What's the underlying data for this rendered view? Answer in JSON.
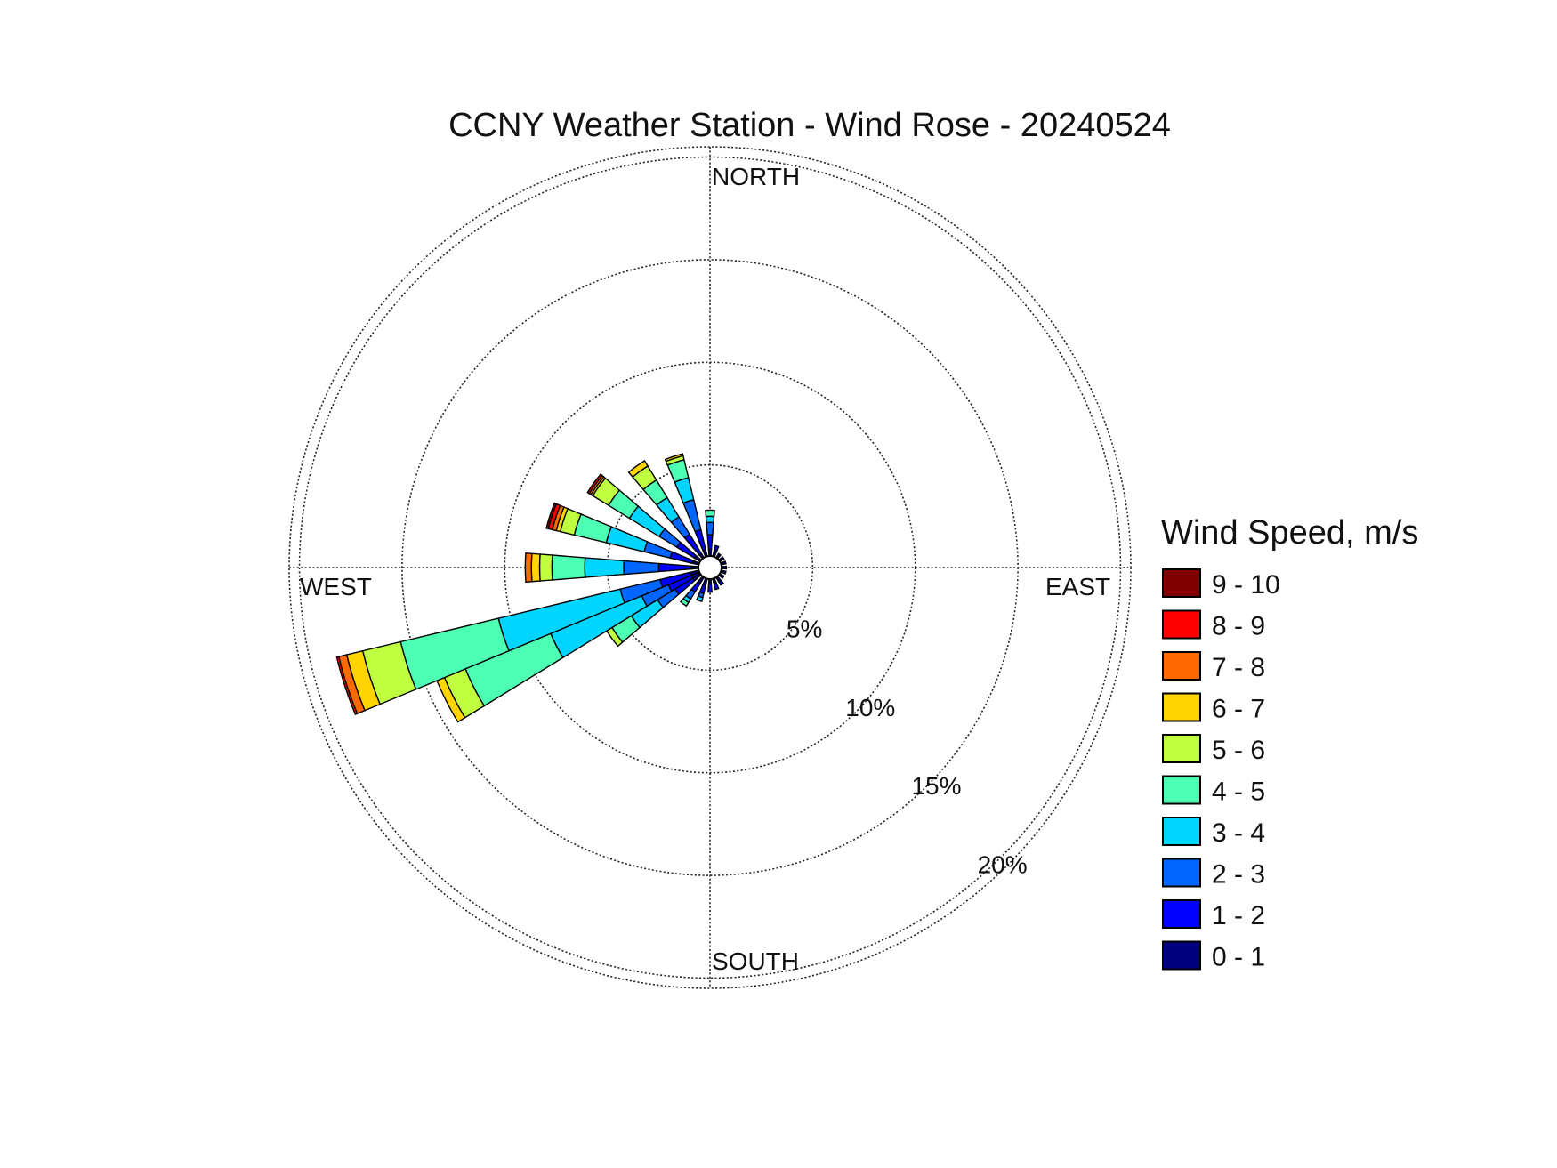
{
  "chart_data": {
    "type": "wind-rose",
    "title": "CCNY Weather Station - Wind Rose - 20240524",
    "direction_labels": {
      "north": "NORTH",
      "south": "SOUTH",
      "east": "EAST",
      "west": "WEST"
    },
    "rings": [
      5,
      10,
      15,
      20
    ],
    "ring_labels": [
      "5%",
      "10%",
      "15%",
      "20%"
    ],
    "rmax": 20.5,
    "calm_radius": 0.6,
    "grid": true,
    "legend": {
      "title": "Wind Speed, m/s",
      "position": "right",
      "bins": [
        {
          "label": "9 - 10",
          "color": "#800000"
        },
        {
          "label": "8 - 9",
          "color": "#ff0000"
        },
        {
          "label": "7 - 8",
          "color": "#ff6a00"
        },
        {
          "label": "6 - 7",
          "color": "#ffd400"
        },
        {
          "label": "5 - 6",
          "color": "#bfff40"
        },
        {
          "label": "4 - 5",
          "color": "#4dffb3"
        },
        {
          "label": "3 - 4",
          "color": "#00d5ff"
        },
        {
          "label": "2 - 3",
          "color": "#0066ff"
        },
        {
          "label": "1 - 2",
          "color": "#0000ff"
        },
        {
          "label": "0 - 1",
          "color": "#00007f"
        }
      ]
    },
    "sector_width_deg": 9,
    "bin_order": [
      "0 - 1",
      "1 - 2",
      "2 - 3",
      "3 - 4",
      "4 - 5",
      "5 - 6",
      "6 - 7",
      "7 - 8",
      "8 - 9",
      "9 - 10"
    ],
    "sectors": [
      {
        "direction_deg": 0,
        "cumulative": [
          0.9,
          1.6,
          2.2,
          2.5,
          2.8
        ]
      },
      {
        "direction_deg": 18,
        "cumulative": [
          0.9,
          1.1
        ]
      },
      {
        "direction_deg": 36,
        "cumulative": [
          0.8
        ]
      },
      {
        "direction_deg": 54,
        "cumulative": [
          0.8
        ]
      },
      {
        "direction_deg": 72,
        "cumulative": [
          0.8
        ]
      },
      {
        "direction_deg": 90,
        "cumulative": [
          0.8
        ]
      },
      {
        "direction_deg": 108,
        "cumulative": [
          0.8
        ]
      },
      {
        "direction_deg": 126,
        "cumulative": [
          0.8
        ]
      },
      {
        "direction_deg": 144,
        "cumulative": [
          0.8,
          1.0
        ]
      },
      {
        "direction_deg": 162,
        "cumulative": [
          0.8,
          1.1
        ]
      },
      {
        "direction_deg": 180,
        "cumulative": [
          0.8,
          1.2
        ]
      },
      {
        "direction_deg": 198,
        "cumulative": [
          0.9,
          1.3,
          1.5,
          1.7
        ]
      },
      {
        "direction_deg": 216,
        "cumulative": [
          0.9,
          1.4,
          1.8,
          2.0,
          2.2
        ]
      },
      {
        "direction_deg": 234,
        "cumulative": [
          1.0,
          2.0,
          3.0,
          4.5,
          5.6,
          5.9
        ]
      },
      {
        "direction_deg": 243,
        "cumulative": [
          1.0,
          2.2,
          3.6,
          8.4,
          12.9,
          14.0,
          14.4
        ]
      },
      {
        "direction_deg": 252,
        "cumulative": [
          1.0,
          2.5,
          4.5,
          10.6,
          15.5,
          17.4,
          18.2,
          18.6,
          18.7
        ]
      },
      {
        "direction_deg": 270,
        "cumulative": [
          0.9,
          2.5,
          4.2,
          6.1,
          7.7,
          8.3,
          8.7,
          9.0
        ]
      },
      {
        "direction_deg": 288,
        "cumulative": [
          0.9,
          2.0,
          3.3,
          5.2,
          6.8,
          7.5,
          7.7,
          7.9,
          8.1,
          8.2
        ]
      },
      {
        "direction_deg": 306,
        "cumulative": [
          0.9,
          1.9,
          2.9,
          4.6,
          5.8,
          6.7,
          6.8,
          6.9,
          7.0
        ]
      },
      {
        "direction_deg": 324,
        "cumulative": [
          0.8,
          1.9,
          2.9,
          4.0,
          5.0,
          5.8,
          6.1
        ]
      },
      {
        "direction_deg": 342,
        "cumulative": [
          0.9,
          1.9,
          3.4,
          4.5,
          5.4,
          5.6,
          5.7
        ]
      }
    ]
  }
}
